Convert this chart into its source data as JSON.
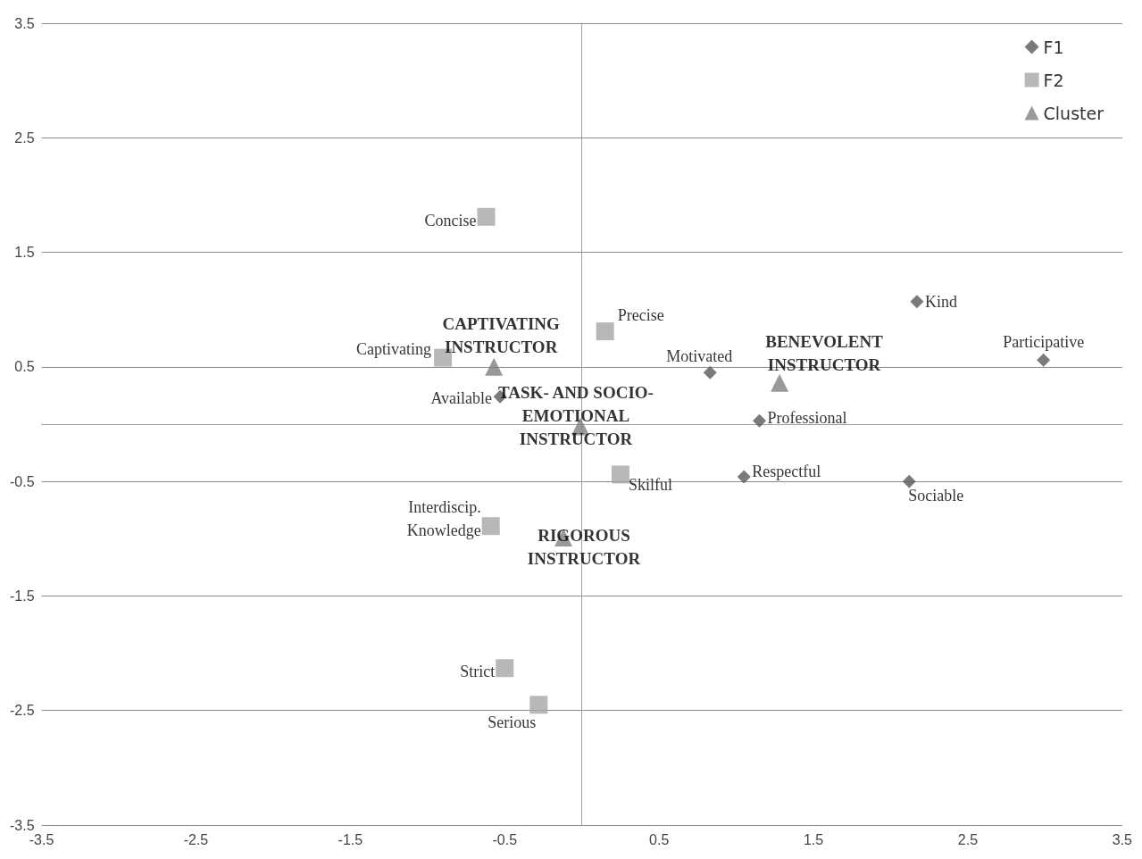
{
  "chart_data": {
    "type": "scatter",
    "series": [
      {
        "name": "F1",
        "color": "#595959",
        "marker": "diamond",
        "x": [
          2.17,
          2.99,
          0.83,
          -0.53,
          1.15,
          1.05,
          2.12
        ],
        "values": [
          1.07,
          0.56,
          0.45,
          0.24,
          0.03,
          -0.46,
          -0.5
        ]
      },
      {
        "name": "F2",
        "color": "#a6a6a6",
        "marker": "square",
        "x": [
          -0.62,
          0.15,
          -0.9,
          0.25,
          -0.59,
          -0.5,
          -0.28
        ],
        "values": [
          1.81,
          0.81,
          0.58,
          -0.44,
          -0.89,
          -2.13,
          -2.45
        ]
      },
      {
        "name": "Cluster",
        "color": "#7f7f7f",
        "marker": "triangle",
        "x": [
          -0.57,
          1.28,
          -0.01,
          -0.12
        ],
        "values": [
          0.5,
          0.36,
          -0.02,
          -0.99
        ]
      }
    ],
    "annotations": [
      {
        "text": "Kind",
        "x": 2.17,
        "y": 1.07
      },
      {
        "text": "Participative",
        "x": 2.99,
        "y": 0.56
      },
      {
        "text": "Motivated",
        "x": 0.83,
        "y": 0.45
      },
      {
        "text": "Available",
        "x": -0.53,
        "y": 0.24
      },
      {
        "text": "Professional",
        "x": 1.15,
        "y": 0.03
      },
      {
        "text": "Respectful",
        "x": 1.05,
        "y": -0.46
      },
      {
        "text": "Sociable",
        "x": 2.12,
        "y": -0.5
      },
      {
        "text": "Concise",
        "x": -0.62,
        "y": 1.81
      },
      {
        "text": "Precise",
        "x": 0.15,
        "y": 0.81
      },
      {
        "text": "Captivating",
        "x": -0.9,
        "y": 0.58
      },
      {
        "text": "Skilful",
        "x": 0.25,
        "y": -0.44
      },
      {
        "text": "Interdiscip.\nKnowledge",
        "x": -0.59,
        "y": -0.89
      },
      {
        "text": "Strict",
        "x": -0.5,
        "y": -2.13
      },
      {
        "text": "Serious",
        "x": -0.28,
        "y": -2.45
      },
      {
        "text": "CAPTIVATING\nINSTRUCTOR",
        "x": -0.57,
        "y": 0.5
      },
      {
        "text": "BENEVOLENT\nINSTRUCTOR",
        "x": 1.28,
        "y": 0.36
      },
      {
        "text": "TASK- AND SOCIO-\nEMOTIONAL\nINSTRUCTOR",
        "x": -0.01,
        "y": -0.02
      },
      {
        "text": "RIGOROUS\nINSTRUCTOR",
        "x": -0.12,
        "y": -0.99
      }
    ],
    "xlim": [
      -3.5,
      3.5
    ],
    "xticks": [
      -3.5,
      -2.5,
      -1.5,
      -0.5,
      0.5,
      1.5,
      2.5,
      3.5
    ],
    "ylim": [
      -3.5,
      3.5
    ],
    "yticks": [
      -3.5,
      -2.5,
      -1.5,
      -0.5,
      0.5,
      1.5,
      2.5,
      3.5
    ],
    "grid": "y",
    "legend": "top right"
  }
}
